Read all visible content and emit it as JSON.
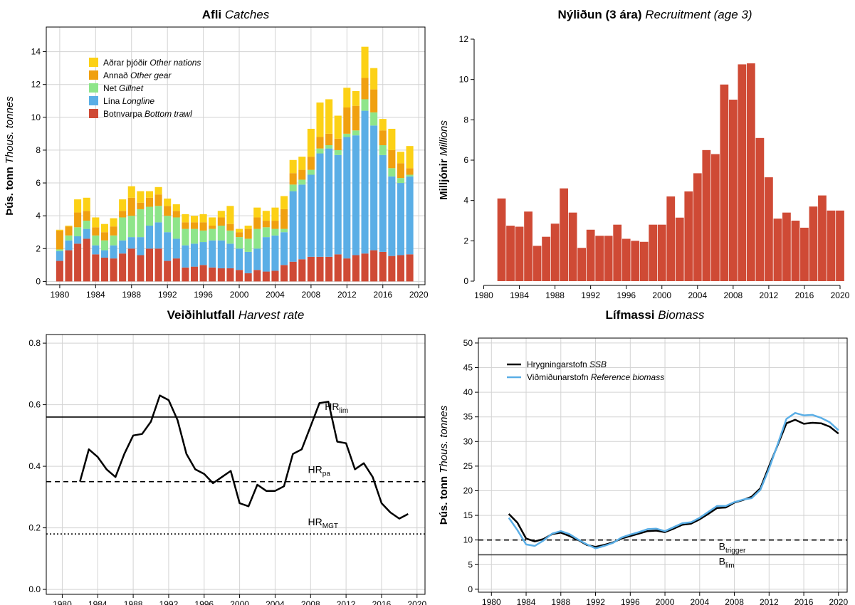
{
  "chart_data": [
    {
      "type": "bar",
      "stacked": true,
      "title": "Afli",
      "title_en": "Catches",
      "ylabel": "Þús. tonn",
      "ylabel_en": "Thous. tonnes",
      "x": [
        1980,
        1981,
        1982,
        1983,
        1984,
        1985,
        1986,
        1987,
        1988,
        1989,
        1990,
        1991,
        1992,
        1993,
        1994,
        1995,
        1996,
        1997,
        1998,
        1999,
        2000,
        2001,
        2002,
        2003,
        2004,
        2005,
        2006,
        2007,
        2008,
        2009,
        2010,
        2011,
        2012,
        2013,
        2014,
        2015,
        2016,
        2017,
        2018,
        2019
      ],
      "series": [
        {
          "name": "Botnvarpa",
          "name_en": "Bottom trawl",
          "color": "#cf4a35",
          "values": [
            1.25,
            1.9,
            2.3,
            2.6,
            1.65,
            1.45,
            1.4,
            1.7,
            2.0,
            1.6,
            2.0,
            2.0,
            1.25,
            1.4,
            0.85,
            0.9,
            1.0,
            0.85,
            0.8,
            0.8,
            0.7,
            0.5,
            0.7,
            0.6,
            0.65,
            1.0,
            1.2,
            1.35,
            1.5,
            1.5,
            1.5,
            1.65,
            1.4,
            1.6,
            1.7,
            1.9,
            1.8,
            1.55,
            1.6,
            1.65
          ]
        },
        {
          "name": "Lína",
          "name_en": "Longline",
          "color": "#5aaee6",
          "values": [
            0.6,
            0.6,
            0.45,
            0.6,
            0.55,
            0.45,
            0.8,
            0.8,
            0.7,
            1.1,
            1.4,
            1.6,
            1.75,
            1.2,
            1.35,
            1.4,
            1.4,
            1.65,
            1.7,
            1.5,
            1.3,
            1.3,
            1.3,
            2.1,
            2.15,
            2.0,
            4.3,
            4.55,
            5.0,
            6.3,
            6.6,
            6.05,
            7.4,
            7.3,
            8.7,
            7.6,
            5.9,
            4.85,
            4.4,
            4.75
          ]
        },
        {
          "name": "Net",
          "name_en": "Gillnet",
          "color": "#8ee58a",
          "values": [
            0.1,
            0.3,
            0.55,
            0.5,
            0.6,
            0.6,
            0.6,
            1.4,
            1.3,
            1.7,
            1.15,
            1.0,
            1.0,
            1.3,
            1.0,
            0.9,
            0.7,
            0.7,
            0.9,
            0.8,
            0.7,
            0.8,
            1.2,
            0.6,
            0.4,
            0.2,
            0.4,
            0.3,
            0.3,
            0.3,
            0.2,
            0.3,
            0.2,
            0.3,
            0.7,
            0.8,
            0.6,
            0.5,
            0.3,
            0.1
          ]
        },
        {
          "name": "Annað",
          "name_en": "Other gear",
          "color": "#f0a010",
          "values": [
            1.15,
            0.55,
            0.9,
            0.6,
            0.5,
            0.5,
            0.55,
            0.4,
            1.1,
            0.4,
            0.55,
            0.7,
            0.6,
            0.4,
            0.4,
            0.4,
            0.5,
            0.2,
            0.5,
            0.4,
            0.3,
            0.6,
            0.7,
            0.4,
            0.5,
            1.2,
            0.7,
            0.6,
            0.8,
            0.7,
            0.7,
            0.7,
            1.6,
            1.5,
            1.3,
            1.4,
            0.9,
            1.1,
            0.9,
            0.4
          ]
        },
        {
          "name": "Aðrar þjóðir",
          "name_en": "Other nations",
          "color": "#fcd116",
          "values": [
            0.05,
            0.05,
            0.8,
            0.8,
            0.6,
            0.5,
            0.5,
            0.7,
            0.7,
            0.7,
            0.4,
            0.45,
            0.45,
            0.4,
            0.5,
            0.4,
            0.5,
            0.5,
            0.4,
            1.1,
            0.2,
            0.2,
            0.6,
            0.6,
            0.8,
            0.8,
            0.8,
            0.8,
            1.7,
            2.1,
            2.1,
            1.4,
            1.2,
            0.9,
            1.9,
            1.3,
            0.7,
            1.3,
            0.7,
            1.35
          ]
        }
      ],
      "xlim": [
        1978.5,
        2020.7
      ],
      "xticks": [
        1980,
        1984,
        1988,
        1992,
        1996,
        2000,
        2004,
        2008,
        2012,
        2016,
        2020
      ],
      "ylim": [
        -0.2,
        15.5
      ],
      "yticks": [
        0,
        2,
        4,
        6,
        8,
        10,
        12,
        14
      ],
      "grid": true,
      "box": true,
      "legend": "top-left"
    },
    {
      "type": "bar",
      "title": "Nýliðun (3 ára)",
      "title_en": "Recruitment (age 3)",
      "ylabel": "Milljónir",
      "ylabel_en": "Millions",
      "x": [
        1982,
        1983,
        1984,
        1985,
        1986,
        1987,
        1988,
        1989,
        1990,
        1991,
        1992,
        1993,
        1994,
        1995,
        1996,
        1997,
        1998,
        1999,
        2000,
        2001,
        2002,
        2003,
        2004,
        2005,
        2006,
        2007,
        2008,
        2009,
        2010,
        2011,
        2012,
        2013,
        2014,
        2015,
        2016,
        2017,
        2018,
        2019,
        2020
      ],
      "values": [
        4.1,
        2.75,
        2.7,
        3.45,
        1.75,
        2.2,
        2.85,
        4.6,
        3.4,
        1.65,
        2.55,
        2.25,
        2.25,
        2.8,
        2.1,
        2.0,
        1.95,
        2.8,
        2.8,
        4.2,
        3.15,
        4.45,
        5.35,
        6.5,
        6.3,
        9.75,
        9.0,
        10.75,
        10.8,
        7.1,
        5.15,
        3.1,
        3.4,
        3.0,
        2.65,
        3.7,
        4.25,
        3.5,
        3.5
      ],
      "color": "#cf4a35",
      "xlim": [
        1979.4,
        2020.8
      ],
      "xticks": [
        1980,
        1984,
        1988,
        1992,
        1996,
        2000,
        2004,
        2008,
        2012,
        2016,
        2020
      ],
      "ylim": [
        0,
        12
      ],
      "yticks": [
        0,
        2,
        4,
        6,
        8,
        10,
        12
      ],
      "grid": false,
      "box": false
    },
    {
      "type": "line",
      "title": "Veiðihlutfall",
      "title_en": "Harvest rate",
      "x": [
        1982,
        1983,
        1984,
        1985,
        1986,
        1987,
        1988,
        1989,
        1990,
        1991,
        1992,
        1993,
        1994,
        1995,
        1996,
        1997,
        1998,
        1999,
        2000,
        2001,
        2002,
        2003,
        2004,
        2005,
        2006,
        2007,
        2008,
        2009,
        2010,
        2011,
        2012,
        2013,
        2014,
        2015,
        2016,
        2017,
        2018,
        2019
      ],
      "values": [
        0.35,
        0.455,
        0.43,
        0.39,
        0.365,
        0.44,
        0.5,
        0.505,
        0.545,
        0.63,
        0.615,
        0.55,
        0.44,
        0.39,
        0.375,
        0.345,
        0.365,
        0.385,
        0.28,
        0.27,
        0.34,
        0.32,
        0.32,
        0.335,
        0.44,
        0.455,
        0.53,
        0.605,
        0.61,
        0.48,
        0.475,
        0.39,
        0.41,
        0.365,
        0.28,
        0.25,
        0.23,
        0.245
      ],
      "color": "#000000",
      "reference_lines": [
        {
          "value": 0.56,
          "label": "HR",
          "label_sub": "lim",
          "style": "solid"
        },
        {
          "value": 0.35,
          "label": "HR",
          "label_sub": "pa",
          "style": "dashed"
        },
        {
          "value": 0.18,
          "label": "HR",
          "label_sub": "MGT",
          "style": "dotted"
        }
      ],
      "xlim": [
        1978.2,
        2020.9
      ],
      "xticks": [
        1980,
        1984,
        1988,
        1992,
        1996,
        2000,
        2004,
        2008,
        2012,
        2016,
        2020
      ],
      "ylim": [
        -0.016,
        0.828
      ],
      "yticks": [
        {
          "value": 0,
          "label": "0.0"
        },
        0.2,
        0.4,
        0.6,
        {
          "value": 0.8,
          "label": "0.8"
        }
      ],
      "grid": true,
      "box": true
    },
    {
      "type": "line",
      "title": "Lífmassi",
      "title_en": "Biomass",
      "ylabel": "Þús. tonn",
      "ylabel_en": "Thous. tonnes",
      "x": [
        1982,
        1983,
        1984,
        1985,
        1986,
        1987,
        1988,
        1989,
        1990,
        1991,
        1992,
        1993,
        1994,
        1995,
        1996,
        1997,
        1998,
        1999,
        2000,
        2001,
        2002,
        2003,
        2004,
        2005,
        2006,
        2007,
        2008,
        2009,
        2010,
        2011,
        2012,
        2013,
        2014,
        2015,
        2016,
        2017,
        2018,
        2019,
        2020
      ],
      "series": [
        {
          "name": "Hrygningarstofn",
          "name_en": "SSB",
          "color": "#000000",
          "values": [
            15.3,
            13.5,
            10.3,
            9.7,
            10.2,
            11.2,
            11.5,
            10.8,
            10.0,
            9.0,
            8.6,
            9.0,
            9.5,
            10.3,
            10.8,
            11.3,
            11.8,
            11.9,
            11.6,
            12.3,
            13.1,
            13.3,
            14.2,
            15.3,
            16.5,
            16.6,
            17.6,
            18.1,
            18.8,
            20.5,
            25,
            29.3,
            33.7,
            34.4,
            33.6,
            33.8,
            33.7,
            33.0,
            31.6
          ]
        },
        {
          "name": "Viðmiðunarstofn",
          "name_en": "Reference biomass",
          "color": "#5aaee6",
          "values": [
            14.5,
            12.0,
            9.1,
            8.8,
            9.9,
            11.3,
            11.8,
            11.2,
            10.1,
            9.1,
            8.3,
            8.8,
            9.4,
            10.5,
            11.1,
            11.6,
            12.2,
            12.3,
            11.8,
            12.6,
            13.4,
            13.6,
            14.5,
            15.7,
            16.9,
            16.9,
            17.7,
            18.2,
            18.5,
            20.2,
            24.5,
            29.5,
            34.6,
            35.8,
            35.3,
            35.4,
            34.8,
            33.9,
            32.3
          ]
        }
      ],
      "reference_lines": [
        {
          "value": 10,
          "label": "B",
          "label_sub": "trigger",
          "style": "dashed"
        },
        {
          "value": 7,
          "label": "B",
          "label_sub": "lim",
          "style": "solid"
        }
      ],
      "xlim": [
        1978.5,
        2021
      ],
      "xticks": [
        1980,
        1984,
        1988,
        1992,
        1996,
        2000,
        2004,
        2008,
        2012,
        2016,
        2020
      ],
      "ylim": [
        -0.6,
        51
      ],
      "yticks": [
        0,
        5,
        10,
        15,
        20,
        25,
        30,
        35,
        40,
        45,
        50
      ],
      "grid": true,
      "box": true,
      "legend": "top-left"
    }
  ]
}
